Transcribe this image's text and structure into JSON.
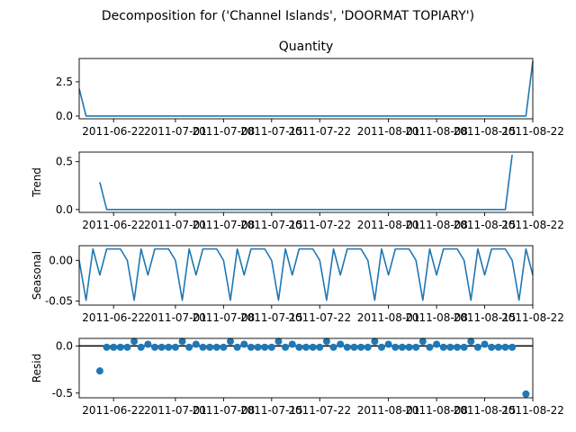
{
  "figure": {
    "suptitle": "Decomposition for ('Channel Islands', 'DOORMAT TOPIARY')"
  },
  "colors": {
    "series": "#1f77b4",
    "axis": "#000000",
    "zero_line": "#000000"
  },
  "chart_data": [
    {
      "type": "line",
      "title": "Quantity",
      "ylabel": "",
      "x_start": "2011-06-17",
      "x_end": "2011-08-22",
      "ylim": [
        -0.2,
        4.2
      ],
      "yticks": [
        "0.0",
        "2.5"
      ],
      "ytick_values": [
        0.0,
        2.5
      ],
      "xtick_labels": [
        "2011-06-22",
        "2011-07-01",
        "2011-07-08",
        "2011-07-15",
        "2011-07-22",
        "2011-08-01",
        "2011-08-08",
        "2011-08-15",
        "2011-08-22"
      ],
      "xtick_dates": [
        "2011-06-22",
        "2011-07-01",
        "2011-07-08",
        "2011-07-15",
        "2011-07-22",
        "2011-08-01",
        "2011-08-08",
        "2011-08-15",
        "2011-08-22"
      ],
      "series": [
        {
          "points": [
            [
              "2011-06-17",
              2.0
            ],
            [
              "2011-06-18",
              0.0
            ],
            [
              "2011-08-21",
              0.0
            ],
            [
              "2011-08-22",
              4.0
            ]
          ]
        }
      ]
    },
    {
      "type": "line",
      "title": "",
      "ylabel": "Trend",
      "x_start": "2011-06-17",
      "x_end": "2011-08-22",
      "ylim": [
        -0.03,
        0.6
      ],
      "yticks": [
        "0.0",
        "0.5"
      ],
      "ytick_values": [
        0.0,
        0.5
      ],
      "xtick_labels": [
        "2011-06-22",
        "2011-07-01",
        "2011-07-08",
        "2011-07-15",
        "2011-07-22",
        "2011-08-01",
        "2011-08-08",
        "2011-08-15",
        "2011-08-22"
      ],
      "xtick_dates": [
        "2011-06-22",
        "2011-07-01",
        "2011-07-08",
        "2011-07-15",
        "2011-07-22",
        "2011-08-01",
        "2011-08-08",
        "2011-08-15",
        "2011-08-22"
      ],
      "series": [
        {
          "points": [
            [
              "2011-06-20",
              0.286
            ],
            [
              "2011-06-21",
              0.0
            ],
            [
              "2011-08-18",
              0.0
            ],
            [
              "2011-08-19",
              0.571
            ]
          ]
        }
      ]
    },
    {
      "type": "line",
      "title": "",
      "ylabel": "Seasonal",
      "x_start": "2011-06-17",
      "x_end": "2011-08-22",
      "ylim": [
        -0.055,
        0.018
      ],
      "yticks": [
        "-0.05",
        "0.00"
      ],
      "ytick_values": [
        -0.05,
        0.0
      ],
      "xtick_labels": [
        "2011-06-22",
        "2011-07-01",
        "2011-07-08",
        "2011-07-15",
        "2011-07-22",
        "2011-08-01",
        "2011-08-08",
        "2011-08-15",
        "2011-08-22"
      ],
      "xtick_dates": [
        "2011-06-22",
        "2011-07-01",
        "2011-07-08",
        "2011-07-15",
        "2011-07-22",
        "2011-08-01",
        "2011-08-08",
        "2011-08-15",
        "2011-08-22"
      ],
      "weekly_pattern": [
        0.0,
        -0.049,
        0.014,
        -0.018,
        0.014,
        0.014,
        0.014
      ],
      "series": [
        {
          "start": "2011-06-17",
          "length": 67
        }
      ]
    },
    {
      "type": "scatter",
      "title": "",
      "ylabel": "Resid",
      "x_start": "2011-06-17",
      "x_end": "2011-08-22",
      "ylim": [
        -0.55,
        0.08
      ],
      "yticks": [
        "-0.5",
        "0.0"
      ],
      "ytick_values": [
        -0.5,
        0.0
      ],
      "zero_line": true,
      "xtick_labels": [
        "2011-06-22",
        "2011-07-01",
        "2011-07-08",
        "2011-07-15",
        "2011-07-22",
        "2011-08-01",
        "2011-08-08",
        "2011-08-15",
        "2011-08-22"
      ],
      "xtick_dates": [
        "2011-06-22",
        "2011-07-01",
        "2011-07-08",
        "2011-07-15",
        "2011-07-22",
        "2011-08-01",
        "2011-08-08",
        "2011-08-15",
        "2011-08-22"
      ],
      "points": [
        [
          "2011-06-20",
          -0.265
        ],
        [
          "2011-06-21",
          -0.014
        ],
        [
          "2011-06-22",
          -0.014
        ],
        [
          "2011-06-23",
          -0.014
        ],
        [
          "2011-06-24",
          -0.014
        ],
        [
          "2011-06-25",
          0.049
        ],
        [
          "2011-06-26",
          -0.014
        ],
        [
          "2011-06-27",
          0.018
        ],
        [
          "2011-06-28",
          -0.014
        ],
        [
          "2011-06-29",
          -0.014
        ],
        [
          "2011-06-30",
          -0.014
        ],
        [
          "2011-07-01",
          -0.014
        ],
        [
          "2011-07-02",
          0.049
        ],
        [
          "2011-07-03",
          -0.014
        ],
        [
          "2011-07-04",
          0.018
        ],
        [
          "2011-07-05",
          -0.014
        ],
        [
          "2011-07-06",
          -0.014
        ],
        [
          "2011-07-07",
          -0.014
        ],
        [
          "2011-07-08",
          -0.014
        ],
        [
          "2011-07-09",
          0.049
        ],
        [
          "2011-07-10",
          -0.014
        ],
        [
          "2011-07-11",
          0.018
        ],
        [
          "2011-07-12",
          -0.014
        ],
        [
          "2011-07-13",
          -0.014
        ],
        [
          "2011-07-14",
          -0.014
        ],
        [
          "2011-07-15",
          -0.014
        ],
        [
          "2011-07-16",
          0.049
        ],
        [
          "2011-07-17",
          -0.014
        ],
        [
          "2011-07-18",
          0.018
        ],
        [
          "2011-07-19",
          -0.014
        ],
        [
          "2011-07-20",
          -0.014
        ],
        [
          "2011-07-21",
          -0.014
        ],
        [
          "2011-07-22",
          -0.014
        ],
        [
          "2011-07-23",
          0.049
        ],
        [
          "2011-07-24",
          -0.014
        ],
        [
          "2011-07-25",
          0.018
        ],
        [
          "2011-07-26",
          -0.014
        ],
        [
          "2011-07-27",
          -0.014
        ],
        [
          "2011-07-28",
          -0.014
        ],
        [
          "2011-07-29",
          -0.014
        ],
        [
          "2011-07-30",
          0.049
        ],
        [
          "2011-07-31",
          -0.014
        ],
        [
          "2011-08-01",
          0.018
        ],
        [
          "2011-08-02",
          -0.014
        ],
        [
          "2011-08-03",
          -0.014
        ],
        [
          "2011-08-04",
          -0.014
        ],
        [
          "2011-08-05",
          -0.014
        ],
        [
          "2011-08-06",
          0.049
        ],
        [
          "2011-08-07",
          -0.014
        ],
        [
          "2011-08-08",
          0.018
        ],
        [
          "2011-08-09",
          -0.014
        ],
        [
          "2011-08-10",
          -0.014
        ],
        [
          "2011-08-11",
          -0.014
        ],
        [
          "2011-08-12",
          -0.014
        ],
        [
          "2011-08-13",
          0.049
        ],
        [
          "2011-08-14",
          -0.014
        ],
        [
          "2011-08-15",
          0.018
        ],
        [
          "2011-08-16",
          -0.014
        ],
        [
          "2011-08-17",
          -0.014
        ],
        [
          "2011-08-18",
          -0.014
        ],
        [
          "2011-08-19",
          -0.014
        ],
        [
          "2011-08-21",
          -0.51
        ]
      ]
    }
  ]
}
